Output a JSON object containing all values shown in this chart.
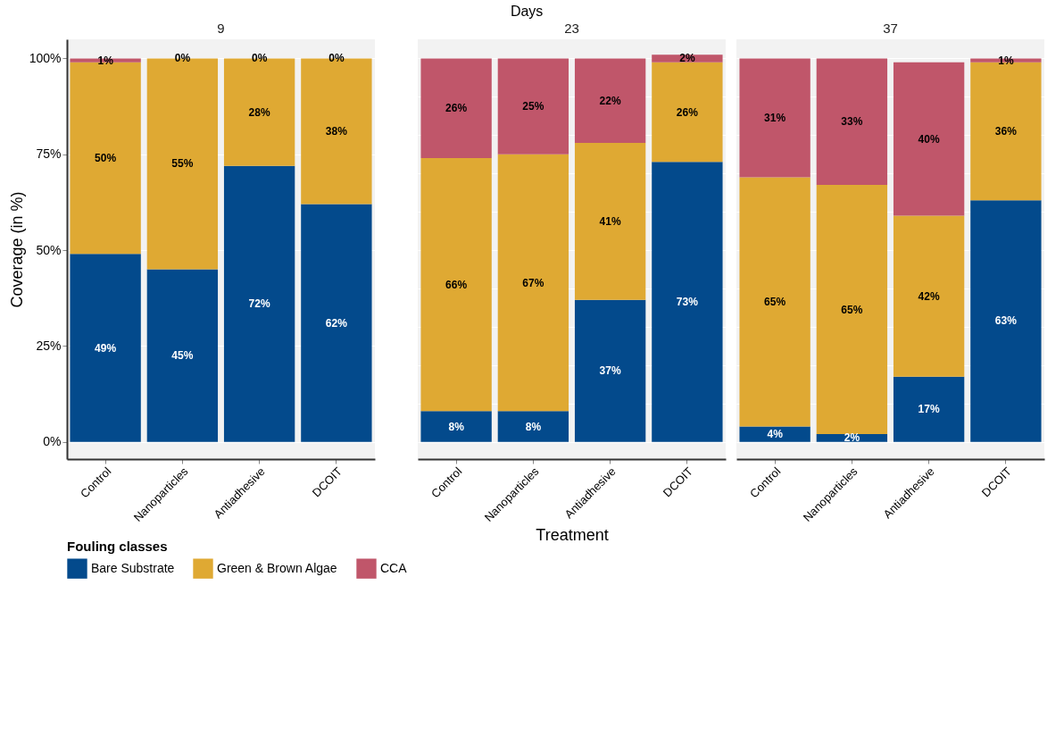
{
  "chart_data": [
    {
      "type": "bar",
      "title": "9",
      "ylabel": "Coverage (in %)",
      "legend_title": "Fouling classes",
      "legend": "bottom",
      "stacked": true,
      "grid": true,
      "categories": [
        "Control",
        "Nanoparticles",
        "Antiadhesive",
        "DCOIT"
      ],
      "ylim": [
        -4.5,
        105
      ],
      "yticks": [
        {
          "value": 0,
          "label": "0%"
        },
        {
          "value": 25,
          "label": "25%"
        },
        {
          "value": 50,
          "label": "50%"
        },
        {
          "value": 75,
          "label": "75%"
        },
        {
          "value": 100,
          "label": "100%"
        }
      ],
      "series": [
        {
          "name": "Bare Substrate",
          "color": "#034a8c",
          "values": [
            49,
            45,
            72,
            62
          ],
          "value_labels": [
            "49%",
            "45%",
            "72%",
            "62%"
          ]
        },
        {
          "name": "Green & Brown Algae",
          "color": "#dfa933",
          "values": [
            50,
            55,
            28,
            38
          ],
          "value_labels": [
            "50%",
            "55%",
            "28%",
            "38%"
          ]
        },
        {
          "name": "CCA",
          "color": "#c0566a",
          "values": [
            1,
            0,
            0,
            0
          ],
          "value_labels": [
            "1%",
            "0%",
            "0%",
            "0%"
          ]
        }
      ]
    },
    {
      "type": "bar",
      "title": "23",
      "xlabel": "Treatment",
      "annotations": [
        "Days"
      ],
      "stacked": true,
      "grid": true,
      "tick_labels": "x",
      "categories": [
        "Control",
        "Nanoparticles",
        "Antiadhesive",
        "DCOIT"
      ],
      "ylim": [
        -4.5,
        105
      ],
      "series": [
        {
          "color": "#034a8c",
          "values": [
            8,
            8,
            37,
            73
          ],
          "value_labels": [
            "8%",
            "8%",
            "37%",
            "73%"
          ]
        },
        {
          "color": "#dfa933",
          "values": [
            66,
            67,
            41,
            26
          ],
          "value_labels": [
            "66%",
            "67%",
            "41%",
            "26%"
          ]
        },
        {
          "color": "#c0566a",
          "values": [
            26,
            25,
            22,
            2
          ],
          "value_labels": [
            "26%",
            "25%",
            "22%",
            "2%"
          ]
        }
      ]
    },
    {
      "type": "bar",
      "title": "37",
      "stacked": true,
      "grid": true,
      "tick_labels": "x",
      "categories": [
        "Control",
        "Nanoparticles",
        "Antiadhesive",
        "DCOIT"
      ],
      "ylim": [
        -4.5,
        105
      ],
      "series": [
        {
          "color": "#034a8c",
          "values": [
            4,
            2,
            17,
            63
          ],
          "value_labels": [
            "4%",
            "2%",
            "17%",
            "63%"
          ]
        },
        {
          "color": "#dfa933",
          "values": [
            65,
            65,
            42,
            36
          ],
          "value_labels": [
            "65%",
            "65%",
            "42%",
            "36%"
          ]
        },
        {
          "color": "#c0566a",
          "values": [
            31,
            33,
            40,
            1
          ],
          "value_labels": [
            "31%",
            "33%",
            "40%",
            "1%"
          ]
        }
      ]
    }
  ]
}
